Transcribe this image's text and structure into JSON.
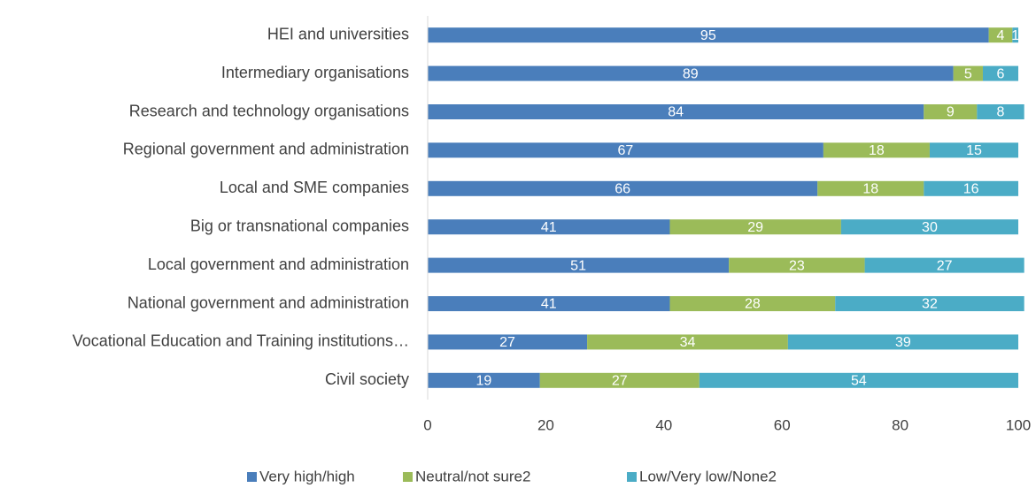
{
  "chart_data": {
    "type": "stacked-bar-horizontal",
    "categories": [
      "HEI and universities",
      "Intermediary organisations",
      "Research and technology organisations",
      "Regional government and administration",
      "Local and SME companies",
      "Big or transnational companies",
      "Local government and administration",
      "National government and administration",
      "Vocational Education and Training institutions…",
      "Civil society"
    ],
    "series": [
      {
        "name": "Very high/high",
        "color": "#4a7ebb",
        "values": [
          95,
          89,
          84,
          67,
          66,
          41,
          51,
          41,
          27,
          19
        ]
      },
      {
        "name": "Neutral/not sure2",
        "color": "#9bbb59",
        "values": [
          4,
          5,
          9,
          18,
          18,
          29,
          23,
          28,
          34,
          27
        ]
      },
      {
        "name": "Low/Very low/None2",
        "color": "#4bacc6",
        "values": [
          1,
          6,
          8,
          15,
          16,
          30,
          27,
          32,
          39,
          54
        ]
      }
    ],
    "xlim": [
      0,
      100
    ],
    "xticks": [
      0,
      20,
      40,
      60,
      80,
      100
    ],
    "legend": "bottom"
  }
}
